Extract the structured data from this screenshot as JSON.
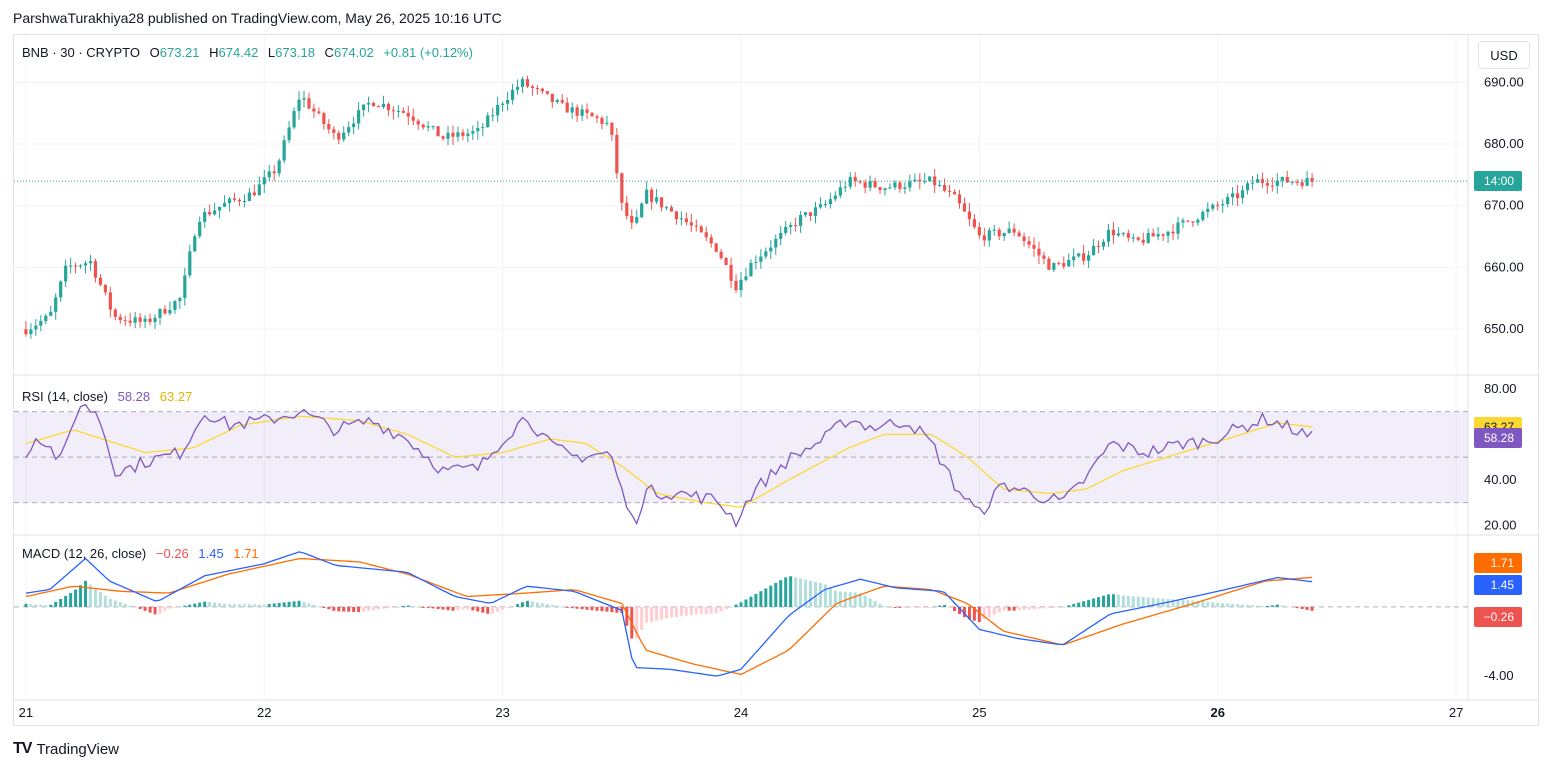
{
  "caption": "ParshwaTurakhiya28 published on TradingView.com, May 26, 2025 10:16 UTC",
  "brand": "TradingView",
  "currency_button": "USD",
  "price_legend": {
    "symbol": "BNB · 30 · CRYPTO",
    "o_label": "O",
    "o": "673.21",
    "h_label": "H",
    "h": "674.42",
    "l_label": "L",
    "l": "673.18",
    "c_label": "C",
    "c": "674.02",
    "change": "+0.81 (+0.12%)"
  },
  "rsi_legend": {
    "label": "RSI (14, close)",
    "rsi": "58.28",
    "ma": "63.27"
  },
  "macd_legend": {
    "label": "MACD (12, 26, close)",
    "hist": "−0.26",
    "macd": "1.45",
    "signal": "1.71"
  },
  "price_tag": {
    "text": "14:00",
    "value": 674.0
  },
  "rsi_tags": [
    {
      "text": "63.27",
      "value": 63.27
    },
    {
      "text": "58.28",
      "value": 58.28
    }
  ],
  "macd_tags": [
    {
      "text": "1.71",
      "value": 1.71
    },
    {
      "text": "1.45",
      "value": 1.45
    },
    {
      "text": "−0.26",
      "value": -0.26
    }
  ],
  "colors": {
    "up": "#26a69a",
    "down": "#ef5350",
    "rsi": "#7e57c2",
    "rsi_ma": "#fdd835",
    "macd": "#2962ff",
    "signal": "#ff6d00",
    "grid": "#f0f3fa",
    "price_line": "#26a69a"
  },
  "chart_data": [
    {
      "type": "candlestick",
      "title": "BNB · 30 · CRYPTO",
      "ylim": [
        645,
        692
      ],
      "y_ticks": [
        "690.00",
        "680.00",
        "670.00",
        "660.00",
        "650.00"
      ],
      "x_ticks": [
        "21",
        "22",
        "23",
        "24",
        "25",
        "26",
        "27"
      ],
      "x_range_days": [
        20.95,
        27.05
      ],
      "anchors": [
        [
          21.0,
          650
        ],
        [
          21.1,
          652
        ],
        [
          21.17,
          660
        ],
        [
          21.27,
          661
        ],
        [
          21.37,
          652
        ],
        [
          21.5,
          651
        ],
        [
          21.65,
          655
        ],
        [
          21.72,
          668
        ],
        [
          21.82,
          670
        ],
        [
          21.95,
          672
        ],
        [
          22.05,
          676
        ],
        [
          22.15,
          688
        ],
        [
          22.3,
          681
        ],
        [
          22.45,
          687
        ],
        [
          22.6,
          685
        ],
        [
          22.75,
          681
        ],
        [
          22.9,
          682
        ],
        [
          23.0,
          687
        ],
        [
          23.08,
          690
        ],
        [
          23.25,
          686
        ],
        [
          23.4,
          684
        ],
        [
          23.45,
          683
        ],
        [
          23.5,
          670
        ],
        [
          23.55,
          666
        ],
        [
          23.6,
          672
        ],
        [
          23.75,
          668
        ],
        [
          23.9,
          663
        ],
        [
          23.98,
          657
        ],
        [
          24.05,
          661
        ],
        [
          24.25,
          668
        ],
        [
          24.35,
          670
        ],
        [
          24.45,
          674
        ],
        [
          24.6,
          673
        ],
        [
          24.8,
          674
        ],
        [
          24.9,
          671
        ],
        [
          25.0,
          665
        ],
        [
          25.15,
          666
        ],
        [
          25.3,
          660
        ],
        [
          25.45,
          662
        ],
        [
          25.55,
          666
        ],
        [
          25.65,
          664
        ],
        [
          25.8,
          666
        ],
        [
          25.95,
          669
        ],
        [
          26.1,
          672
        ],
        [
          26.15,
          674
        ],
        [
          26.3,
          674
        ],
        [
          26.4,
          674.02
        ]
      ],
      "price_line": 674.0
    },
    {
      "type": "line",
      "name": "RSI (14, close)",
      "ylim": [
        18,
        83
      ],
      "y_ticks": [
        "80.00",
        "40.00",
        "20.00"
      ],
      "bands": [
        70,
        50,
        30
      ],
      "series": [
        {
          "name": "RSI",
          "anchors": [
            [
              21.0,
              52
            ],
            [
              21.05,
              60
            ],
            [
              21.15,
              48
            ],
            [
              21.22,
              73
            ],
            [
              21.3,
              70
            ],
            [
              21.38,
              43
            ],
            [
              21.5,
              48
            ],
            [
              21.65,
              52
            ],
            [
              21.75,
              70
            ],
            [
              21.85,
              64
            ],
            [
              22.0,
              66
            ],
            [
              22.15,
              70
            ],
            [
              22.3,
              62
            ],
            [
              22.45,
              66
            ],
            [
              22.6,
              58
            ],
            [
              22.75,
              44
            ],
            [
              22.9,
              45
            ],
            [
              23.0,
              58
            ],
            [
              23.1,
              68
            ],
            [
              23.2,
              55
            ],
            [
              23.3,
              50
            ],
            [
              23.45,
              52
            ],
            [
              23.5,
              35
            ],
            [
              23.55,
              20
            ],
            [
              23.6,
              35
            ],
            [
              23.75,
              34
            ],
            [
              23.9,
              31
            ],
            [
              23.98,
              22
            ],
            [
              24.05,
              35
            ],
            [
              24.2,
              49
            ],
            [
              24.35,
              58
            ],
            [
              24.45,
              67
            ],
            [
              24.55,
              63
            ],
            [
              24.7,
              66
            ],
            [
              24.8,
              56
            ],
            [
              24.9,
              37
            ],
            [
              25.0,
              25
            ],
            [
              25.1,
              38
            ],
            [
              25.25,
              33
            ],
            [
              25.35,
              30
            ],
            [
              25.45,
              41
            ],
            [
              25.55,
              56
            ],
            [
              25.7,
              52
            ],
            [
              25.85,
              56
            ],
            [
              25.95,
              57
            ],
            [
              26.1,
              63
            ],
            [
              26.2,
              67
            ],
            [
              26.3,
              63
            ],
            [
              26.4,
              58.28
            ]
          ]
        },
        {
          "name": "RSI-based MA",
          "anchors": [
            [
              21.0,
              56
            ],
            [
              21.2,
              62
            ],
            [
              21.5,
              52
            ],
            [
              21.7,
              54
            ],
            [
              21.9,
              64
            ],
            [
              22.15,
              68
            ],
            [
              22.4,
              66
            ],
            [
              22.6,
              60
            ],
            [
              22.8,
              50
            ],
            [
              23.0,
              52
            ],
            [
              23.2,
              58
            ],
            [
              23.35,
              56
            ],
            [
              23.5,
              46
            ],
            [
              23.65,
              34
            ],
            [
              23.85,
              30
            ],
            [
              24.0,
              28
            ],
            [
              24.2,
              40
            ],
            [
              24.45,
              54
            ],
            [
              24.6,
              60
            ],
            [
              24.8,
              60
            ],
            [
              24.95,
              50
            ],
            [
              25.1,
              36
            ],
            [
              25.3,
              34
            ],
            [
              25.45,
              36
            ],
            [
              25.6,
              44
            ],
            [
              25.85,
              52
            ],
            [
              26.1,
              60
            ],
            [
              26.25,
              65
            ],
            [
              26.4,
              63.27
            ]
          ]
        }
      ]
    },
    {
      "type": "line",
      "name": "MACD (12, 26, close)",
      "ylim": [
        -4.8,
        3.0
      ],
      "y_ticks": [
        "-4.00"
      ],
      "series": [
        {
          "name": "MACD",
          "anchors": [
            [
              21.0,
              0.8
            ],
            [
              21.1,
              1.0
            ],
            [
              21.25,
              2.8
            ],
            [
              21.35,
              1.5
            ],
            [
              21.55,
              0.3
            ],
            [
              21.75,
              1.8
            ],
            [
              22.0,
              2.5
            ],
            [
              22.15,
              3.2
            ],
            [
              22.3,
              2.4
            ],
            [
              22.6,
              2.0
            ],
            [
              22.8,
              0.6
            ],
            [
              22.95,
              0.2
            ],
            [
              23.1,
              1.2
            ],
            [
              23.3,
              0.9
            ],
            [
              23.5,
              -0.2
            ],
            [
              23.55,
              -3.5
            ],
            [
              23.7,
              -3.6
            ],
            [
              23.9,
              -4.0
            ],
            [
              24.0,
              -3.6
            ],
            [
              24.2,
              -0.5
            ],
            [
              24.35,
              1.0
            ],
            [
              24.5,
              1.6
            ],
            [
              24.65,
              1.1
            ],
            [
              24.85,
              0.9
            ],
            [
              25.0,
              -1.3
            ],
            [
              25.15,
              -1.8
            ],
            [
              25.35,
              -2.2
            ],
            [
              25.55,
              -0.4
            ],
            [
              25.8,
              0.3
            ],
            [
              26.0,
              0.9
            ],
            [
              26.25,
              1.7
            ],
            [
              26.4,
              1.45
            ]
          ]
        },
        {
          "name": "Signal",
          "anchors": [
            [
              21.0,
              0.6
            ],
            [
              21.2,
              1.2
            ],
            [
              21.4,
              0.9
            ],
            [
              21.6,
              0.8
            ],
            [
              21.85,
              1.9
            ],
            [
              22.15,
              2.8
            ],
            [
              22.4,
              2.6
            ],
            [
              22.6,
              1.9
            ],
            [
              22.85,
              0.6
            ],
            [
              23.1,
              0.8
            ],
            [
              23.3,
              1.0
            ],
            [
              23.5,
              0.2
            ],
            [
              23.6,
              -2.5
            ],
            [
              23.8,
              -3.3
            ],
            [
              24.0,
              -3.9
            ],
            [
              24.2,
              -2.5
            ],
            [
              24.4,
              0.2
            ],
            [
              24.6,
              1.2
            ],
            [
              24.8,
              1.0
            ],
            [
              24.95,
              0.2
            ],
            [
              25.1,
              -1.4
            ],
            [
              25.35,
              -2.2
            ],
            [
              25.6,
              -1.0
            ],
            [
              25.9,
              0.2
            ],
            [
              26.2,
              1.5
            ],
            [
              26.4,
              1.71
            ]
          ]
        }
      ]
    }
  ]
}
